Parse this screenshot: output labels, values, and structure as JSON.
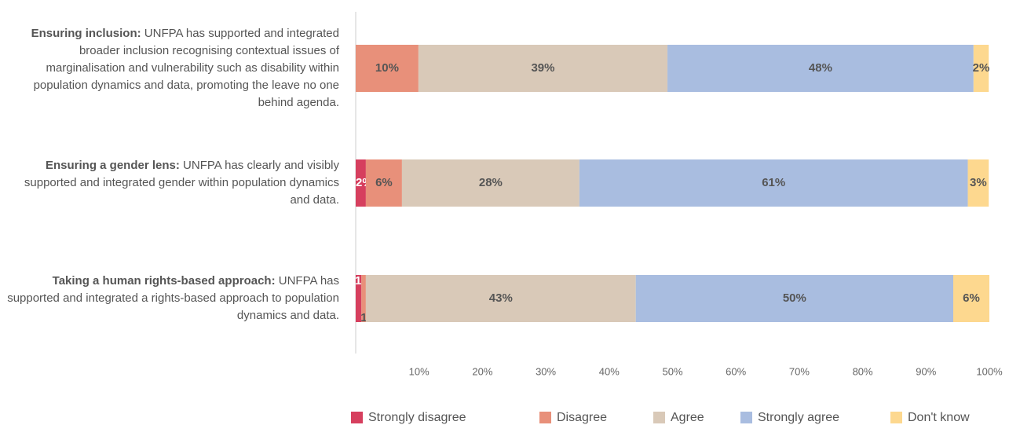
{
  "chart_data": {
    "type": "stacked-barh",
    "categories": [
      {
        "title": "Ensuring inclusion:",
        "text": "UNFPA has supported and integrated broader inclusion recognising contextual issues of marginalisation and vulnerability such as disability within population dynamics and data, promoting the leave no one behind agenda."
      },
      {
        "title": "Ensuring a gender lens:",
        "text": "UNFPA has clearly and visibly supported and integrated gender within population dynamics and data."
      },
      {
        "title": "Taking a human rights-based approach:",
        "text": "UNFPA has supported and integrated a rights-based approach to population dynamics and data."
      }
    ],
    "series": [
      {
        "name": "Strongly disagree",
        "color": "#d63f5e",
        "values": [
          0,
          1.6,
          0.9
        ],
        "value_labels": [
          null,
          "2%",
          "1%"
        ]
      },
      {
        "name": "Disagree",
        "color": "#e8907a",
        "values": [
          9.9,
          5.7,
          0.7
        ],
        "value_labels": [
          "10%",
          "6%",
          "1%"
        ]
      },
      {
        "name": "Agree",
        "color": "#d9c9b8",
        "values": [
          39.3,
          28.0,
          42.6
        ],
        "value_labels": [
          "39%",
          "28%",
          "43%"
        ]
      },
      {
        "name": "Strongly agree",
        "color": "#a9bde0",
        "values": [
          48.3,
          61.3,
          50.1
        ],
        "value_labels": [
          "48%",
          "61%",
          "50%"
        ]
      },
      {
        "name": "Don't know",
        "color": "#fdd88f",
        "values": [
          2.4,
          3.3,
          5.7
        ],
        "value_labels": [
          "2%",
          "3%",
          "6%"
        ]
      }
    ],
    "xlim": [
      0,
      100
    ],
    "xticks": [
      {
        "value": 10,
        "label": "10%"
      },
      {
        "value": 20,
        "label": "20%"
      },
      {
        "value": 30,
        "label": "30%"
      },
      {
        "value": 40,
        "label": "40%"
      },
      {
        "value": 50,
        "label": "50%"
      },
      {
        "value": 60,
        "label": "60%"
      },
      {
        "value": 70,
        "label": "70%"
      },
      {
        "value": 80,
        "label": "80%"
      },
      {
        "value": 90,
        "label": "90%"
      },
      {
        "value": 100,
        "label": "100%"
      }
    ],
    "legend": "bottom"
  }
}
